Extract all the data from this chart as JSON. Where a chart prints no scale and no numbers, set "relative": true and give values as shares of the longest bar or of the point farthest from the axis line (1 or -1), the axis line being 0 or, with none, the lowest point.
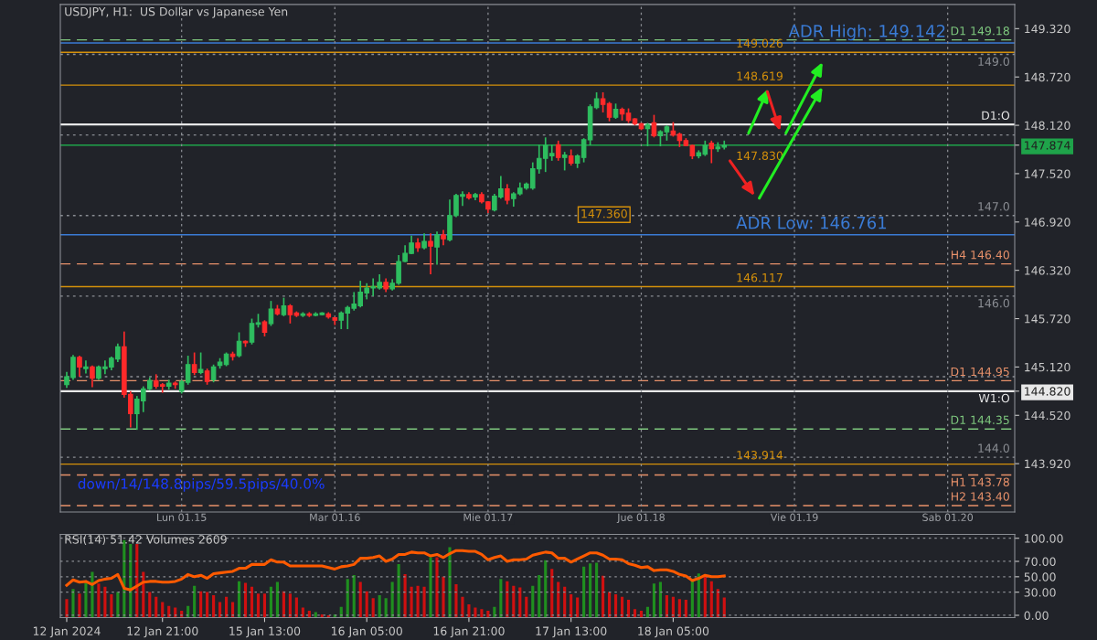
{
  "chart_data": [
    {
      "type": "candlestick",
      "title": "USDJPY, H1:  US Dollar vs Japanese Yen",
      "grid": "x",
      "categories": [
        null,
        null,
        null,
        null,
        null,
        null,
        null,
        null,
        null,
        null,
        null,
        null,
        null,
        null,
        null,
        null,
        null,
        null,
        "Lun 01.15",
        null,
        null,
        null,
        null,
        null,
        null,
        null,
        null,
        null,
        null,
        null,
        null,
        null,
        null,
        null,
        null,
        null,
        null,
        null,
        null,
        null,
        null,
        null,
        "Mar 01.16",
        null,
        null,
        null,
        null,
        null,
        null,
        null,
        null,
        null,
        null,
        null,
        null,
        null,
        null,
        null,
        null,
        null,
        null,
        null,
        null,
        null,
        null,
        null,
        "Mie 01.17",
        null,
        null,
        null,
        null,
        null,
        null,
        null,
        null,
        null,
        null,
        null,
        null,
        null,
        null,
        null,
        null,
        null,
        null,
        null,
        null,
        null,
        null,
        null,
        "Jue 01.18",
        null,
        null,
        null,
        null,
        null,
        null,
        null,
        null,
        null,
        null,
        null,
        null,
        null,
        null,
        null,
        null,
        null,
        null,
        null,
        null,
        null,
        null,
        null,
        "Vie 01.19",
        null,
        null,
        null,
        null,
        null,
        null,
        null,
        null,
        null,
        null,
        null,
        null,
        null,
        null,
        null,
        null,
        null,
        null,
        null,
        null,
        null,
        null,
        null,
        "Sab 01.20",
        null,
        null,
        null,
        null,
        null,
        null,
        null,
        null,
        null,
        null
      ],
      "ohlc": [
        [
          144.9,
          145.06,
          144.86,
          145.0
        ],
        [
          144.99,
          145.27,
          144.96,
          145.24
        ],
        [
          145.24,
          145.26,
          145.0,
          145.12
        ],
        [
          145.1,
          145.2,
          145.04,
          145.12
        ],
        [
          145.12,
          145.14,
          144.87,
          144.98
        ],
        [
          144.98,
          145.14,
          144.96,
          145.12
        ],
        [
          145.1,
          145.2,
          145.03,
          145.12
        ],
        [
          145.12,
          145.25,
          145.08,
          145.23
        ],
        [
          145.22,
          145.41,
          145.18,
          145.37
        ],
        [
          145.37,
          145.56,
          144.74,
          144.78
        ],
        [
          144.78,
          144.82,
          144.37,
          144.54
        ],
        [
          144.54,
          144.76,
          144.34,
          144.72
        ],
        [
          144.7,
          144.88,
          144.56,
          144.85
        ],
        [
          144.85,
          144.99,
          144.83,
          144.95
        ],
        [
          144.95,
          145.03,
          144.85,
          144.88
        ],
        [
          144.9,
          144.92,
          144.8,
          144.88
        ],
        [
          144.88,
          144.96,
          144.84,
          144.92
        ],
        [
          144.92,
          144.94,
          144.85,
          144.9
        ],
        [
          144.82,
          144.96,
          144.79,
          144.94
        ],
        [
          144.93,
          145.26,
          144.9,
          145.15
        ],
        [
          145.15,
          145.3,
          145.02,
          145.05
        ],
        [
          145.05,
          145.3,
          145.03,
          145.09
        ],
        [
          145.07,
          145.1,
          144.9,
          144.94
        ],
        [
          144.96,
          145.15,
          144.93,
          145.12
        ],
        [
          145.14,
          145.23,
          145.1,
          145.18
        ],
        [
          145.15,
          145.3,
          145.13,
          145.28
        ],
        [
          145.28,
          145.31,
          145.2,
          145.25
        ],
        [
          145.26,
          145.55,
          145.24,
          145.44
        ],
        [
          145.44,
          145.45,
          145.37,
          145.42
        ],
        [
          145.43,
          145.72,
          145.4,
          145.66
        ],
        [
          145.65,
          145.78,
          145.61,
          145.67
        ],
        [
          145.68,
          145.7,
          145.5,
          145.55
        ],
        [
          145.66,
          145.94,
          145.63,
          145.84
        ],
        [
          145.84,
          145.89,
          145.76,
          145.78
        ],
        [
          145.77,
          145.98,
          145.75,
          145.88
        ],
        [
          145.88,
          145.9,
          145.66,
          145.77
        ],
        [
          145.79,
          145.81,
          145.74,
          145.76
        ],
        [
          145.76,
          145.8,
          145.74,
          145.78
        ],
        [
          145.78,
          145.8,
          145.74,
          145.76
        ],
        [
          145.76,
          145.8,
          145.75,
          145.78
        ],
        [
          145.77,
          145.8,
          145.76,
          145.79
        ],
        [
          145.78,
          145.8,
          145.72,
          145.74
        ],
        [
          145.73,
          145.74,
          145.64,
          145.7
        ],
        [
          145.7,
          145.81,
          145.59,
          145.79
        ],
        [
          145.79,
          145.88,
          145.59,
          145.86
        ],
        [
          145.85,
          146.05,
          145.82,
          145.9
        ],
        [
          145.88,
          146.19,
          145.86,
          146.05
        ],
        [
          146.04,
          146.16,
          145.96,
          146.1
        ],
        [
          146.1,
          146.22,
          146.0,
          146.12
        ],
        [
          146.1,
          146.27,
          146.08,
          146.17
        ],
        [
          146.17,
          146.22,
          146.05,
          146.09
        ],
        [
          146.09,
          146.21,
          146.07,
          146.16
        ],
        [
          146.16,
          146.51,
          146.14,
          146.43
        ],
        [
          146.43,
          146.63,
          146.42,
          146.53
        ],
        [
          146.53,
          146.75,
          146.52,
          146.66
        ],
        [
          146.66,
          146.72,
          146.55,
          146.6
        ],
        [
          146.6,
          146.78,
          146.58,
          146.68
        ],
        [
          146.68,
          146.78,
          146.27,
          146.62
        ],
        [
          146.61,
          146.8,
          146.39,
          146.76
        ],
        [
          146.76,
          146.82,
          146.63,
          146.71
        ],
        [
          146.7,
          147.2,
          146.68,
          147.0
        ],
        [
          147.0,
          147.27,
          146.98,
          147.25
        ],
        [
          147.24,
          147.3,
          147.12,
          147.26
        ],
        [
          147.26,
          147.29,
          147.2,
          147.22
        ],
        [
          147.23,
          147.28,
          147.19,
          147.26
        ],
        [
          147.26,
          147.29,
          147.15,
          147.17
        ],
        [
          147.17,
          147.18,
          147.03,
          147.08
        ],
        [
          147.07,
          147.27,
          147.05,
          147.24
        ],
        [
          147.23,
          147.49,
          147.21,
          147.33
        ],
        [
          147.33,
          147.39,
          147.14,
          147.19
        ],
        [
          147.21,
          147.29,
          147.11,
          147.27
        ],
        [
          147.27,
          147.41,
          147.25,
          147.34
        ],
        [
          147.34,
          147.41,
          147.32,
          147.39
        ],
        [
          147.34,
          147.66,
          147.32,
          147.58
        ],
        [
          147.58,
          147.88,
          147.52,
          147.71
        ],
        [
          147.71,
          147.97,
          147.54,
          147.87
        ],
        [
          147.74,
          147.88,
          147.68,
          147.77
        ],
        [
          147.88,
          147.93,
          147.68,
          147.72
        ],
        [
          147.72,
          147.79,
          147.56,
          147.75
        ],
        [
          147.74,
          147.82,
          147.62,
          147.65
        ],
        [
          147.65,
          147.76,
          147.59,
          147.74
        ],
        [
          147.72,
          147.96,
          147.66,
          147.94
        ],
        [
          147.94,
          148.38,
          147.87,
          148.35
        ],
        [
          148.34,
          148.53,
          148.32,
          148.45
        ],
        [
          148.45,
          148.53,
          148.28,
          148.38
        ],
        [
          148.39,
          148.41,
          148.17,
          148.22
        ],
        [
          148.22,
          148.39,
          148.2,
          148.32
        ],
        [
          148.32,
          148.34,
          148.18,
          148.26
        ],
        [
          148.27,
          148.33,
          148.15,
          148.18
        ],
        [
          148.2,
          148.21,
          148.12,
          148.14
        ],
        [
          148.14,
          148.15,
          148.06,
          148.08
        ],
        [
          148.08,
          148.15,
          147.86,
          148.13
        ],
        [
          148.15,
          148.25,
          147.97,
          147.99
        ],
        [
          147.99,
          148.06,
          147.86,
          148.04
        ],
        [
          148.04,
          148.12,
          147.93,
          148.1
        ],
        [
          148.05,
          148.16,
          147.98,
          148.0
        ],
        [
          148.01,
          148.03,
          147.85,
          147.93
        ],
        [
          147.93,
          147.96,
          147.86,
          147.87
        ],
        [
          147.87,
          147.88,
          147.7,
          147.74
        ],
        [
          147.74,
          147.81,
          147.71,
          147.78
        ],
        [
          147.76,
          147.93,
          147.74,
          147.87
        ],
        [
          147.9,
          147.93,
          147.65,
          147.83
        ],
        [
          147.83,
          147.91,
          147.79,
          147.85
        ],
        [
          147.85,
          147.93,
          147.82,
          147.874
        ],
        null,
        null,
        null,
        null,
        null,
        null,
        null,
        null,
        null,
        null,
        null,
        null,
        null,
        null,
        null,
        null,
        null,
        null,
        null,
        null,
        null,
        null,
        null,
        null,
        null,
        null,
        null,
        null,
        null,
        null,
        null,
        null,
        null,
        null,
        null,
        null,
        null,
        null,
        null,
        null,
        null,
        null,
        null,
        null,
        null
      ],
      "ylim": [
        143.32,
        149.62
      ],
      "yticks": [
        {
          "value": 143.92,
          "label": "143.920"
        },
        {
          "value": 144.52,
          "label": "144.520"
        },
        {
          "value": 144.82,
          "label": "144.820"
        },
        {
          "value": 145.12,
          "label": "145.120"
        },
        {
          "value": 145.72,
          "label": "145.720"
        },
        {
          "value": 146.32,
          "label": "146.320"
        },
        {
          "value": 146.92,
          "label": "146.920"
        },
        {
          "value": 147.52,
          "label": "147.520"
        },
        {
          "value": 147.874,
          "label": "147.874"
        },
        {
          "value": 148.12,
          "label": "148.120"
        },
        {
          "value": 148.72,
          "label": "148.720"
        },
        {
          "value": 149.32,
          "label": "149.320"
        }
      ],
      "ref_lines": [
        {
          "axis": "y",
          "value": 149.18,
          "label": "D1 149.18",
          "color": "#7ec87e",
          "line_style": "dashed"
        },
        {
          "axis": "y",
          "value": 144.35,
          "label": "D1 144.35",
          "color": "#7ec87e",
          "line_style": "dashed"
        },
        {
          "axis": "y",
          "value": 146.4,
          "label": "H4 146.40",
          "color": "#e8916a",
          "line_style": "dashed"
        },
        {
          "axis": "y",
          "value": 144.95,
          "label": "D1 144.95",
          "color": "#e8916a",
          "line_style": "dashed"
        },
        {
          "axis": "y",
          "value": 143.78,
          "label": "H1 143.78",
          "color": "#e8916a",
          "line_style": "dashed"
        },
        {
          "axis": "y",
          "value": 143.4,
          "label": "H2 143.40",
          "color": "#e8916a",
          "line_style": "dashed"
        },
        {
          "axis": "y",
          "value": 149.0,
          "label": "149.0",
          "color": "#8a8d93",
          "line_style": "dotted"
        },
        {
          "axis": "y",
          "value": 148.0,
          "label": null,
          "color": "#8a8d93",
          "line_style": "dotted"
        },
        {
          "axis": "y",
          "value": 147.0,
          "label": "147.0",
          "color": "#8a8d93",
          "line_style": "dotted"
        },
        {
          "axis": "y",
          "value": 146.0,
          "label": "146.0",
          "color": "#8a8d93",
          "line_style": "dotted"
        },
        {
          "axis": "y",
          "value": 145.0,
          "label": null,
          "color": "#8a8d93",
          "line_style": "dotted"
        },
        {
          "axis": "y",
          "value": 144.0,
          "label": "144.0",
          "color": "#8a8d93",
          "line_style": "dotted"
        },
        {
          "axis": "y",
          "value": 148.13,
          "label": "D1:O",
          "color": "#e8e8e8",
          "line_style": "solid"
        },
        {
          "axis": "y",
          "value": 144.82,
          "label": "W1:O",
          "color": "#e8e8e8",
          "line_style": "solid"
        },
        {
          "axis": "y",
          "value": 147.874,
          "label": null,
          "color": "#1fa34a",
          "line_style": "solid"
        },
        {
          "axis": "y",
          "value": 149.026,
          "label": null,
          "color": "#d4900a",
          "line_style": "solid"
        },
        {
          "axis": "y",
          "value": 148.619,
          "label": null,
          "color": "#d4900a",
          "line_style": "solid"
        },
        {
          "axis": "y",
          "value": 146.117,
          "label": null,
          "color": "#d4900a",
          "line_style": "solid"
        },
        {
          "axis": "y",
          "value": 143.914,
          "label": null,
          "color": "#d4900a",
          "line_style": "solid"
        },
        {
          "axis": "y",
          "value": 149.142,
          "label": null,
          "color": "#3a7bd5",
          "line_style": "solid"
        },
        {
          "axis": "y",
          "value": 146.761,
          "label": null,
          "color": "#3a7bd5",
          "line_style": "solid"
        }
      ],
      "annotations": [
        {
          "text": "149.026",
          "y": 149.026
        },
        {
          "text": "148.619",
          "y": 148.619
        },
        {
          "text": "147.830",
          "y": 147.83
        },
        {
          "text": "146.117",
          "y": 146.117
        },
        {
          "text": "143.914",
          "y": 143.914
        },
        {
          "text": "ADR High: 149.142",
          "y": 149.142
        },
        {
          "text": "ADR Low: 146.761",
          "y": 146.761
        },
        "147.360",
        "down/14/148.8pips/59.5pips/40.0%"
      ]
    },
    {
      "type": "line",
      "title": "RSI(14) 51.42 Volumes 2609",
      "grid": "y",
      "ylim": [
        -3,
        105
      ],
      "categories": [
        "12 Jan 2024",
        null,
        null,
        null,
        null,
        null,
        null,
        null,
        null,
        null,
        null,
        null,
        null,
        null,
        null,
        "12 Jan 21:00",
        null,
        null,
        null,
        null,
        null,
        null,
        null,
        null,
        null,
        null,
        null,
        null,
        null,
        null,
        null,
        "15 Jan 13:00",
        null,
        null,
        null,
        null,
        null,
        null,
        null,
        null,
        null,
        null,
        null,
        null,
        null,
        null,
        null,
        "16 Jan 05:00",
        null,
        null,
        null,
        null,
        null,
        null,
        null,
        null,
        null,
        null,
        null,
        null,
        null,
        null,
        null,
        "16 Jan 21:00",
        null,
        null,
        null,
        null,
        null,
        null,
        null,
        null,
        null,
        null,
        null,
        null,
        null,
        null,
        null,
        "17 Jan 13:00",
        null,
        null,
        null,
        null,
        null,
        null,
        null,
        null,
        null,
        null,
        null,
        null,
        null,
        null,
        null,
        "18 Jan 05:00",
        null,
        null,
        null,
        null,
        null,
        null,
        null,
        null,
        null,
        null,
        null,
        null,
        null,
        null,
        null,
        null,
        null,
        null,
        null,
        null,
        null,
        null,
        null,
        null,
        null,
        null,
        null,
        null,
        null,
        null,
        null,
        null,
        null,
        null,
        null,
        null,
        null,
        null,
        null,
        null,
        null,
        null,
        null,
        null,
        null,
        null,
        null,
        null,
        null,
        null,
        null,
        null,
        null
      ],
      "yticks": [
        {
          "value": 0,
          "label": "0.00"
        },
        {
          "value": 30,
          "label": "30.00"
        },
        {
          "value": 50,
          "label": "50.00"
        },
        {
          "value": 70,
          "label": "70.00"
        },
        {
          "value": 100,
          "label": "100.00"
        }
      ],
      "series": [
        {
          "color": "#ff5a00",
          "values": [
            39,
            46,
            43,
            44,
            40,
            45,
            47,
            48,
            53,
            35,
            33,
            38,
            43,
            44,
            44,
            43,
            43,
            44,
            47,
            53,
            50,
            52,
            48,
            54,
            55,
            56,
            57,
            61,
            61,
            66,
            66,
            66,
            72,
            69,
            69,
            64,
            64,
            64,
            64,
            64,
            64,
            62,
            60,
            63,
            64,
            66,
            74,
            74,
            75,
            77,
            70,
            73,
            79,
            79,
            82,
            81,
            81,
            77,
            79,
            75,
            80,
            84,
            84,
            83,
            83,
            79,
            72,
            75,
            77,
            70,
            72,
            72,
            73,
            78,
            80,
            82,
            81,
            74,
            74,
            69,
            73,
            77,
            81,
            81,
            78,
            73,
            73,
            72,
            67,
            65,
            62,
            63,
            58,
            59,
            59,
            57,
            53,
            51,
            45,
            48,
            52,
            50,
            50,
            51,
            null,
            null,
            null,
            null,
            null,
            null,
            null,
            null,
            null,
            null,
            null,
            null,
            null,
            null,
            null,
            null,
            null,
            null,
            null,
            null,
            null,
            null,
            null,
            null,
            null,
            null,
            null,
            null,
            null,
            null,
            null,
            null,
            null,
            null,
            null,
            null,
            null,
            null,
            null,
            null,
            null,
            null,
            null,
            null,
            null
          ]
        }
      ]
    },
    {
      "type": "bar",
      "relative": true,
      "categories": [
        null,
        null,
        null,
        null,
        null,
        null,
        null,
        null,
        null,
        null,
        null,
        null,
        null,
        null,
        null,
        null,
        null,
        null,
        null,
        null,
        null,
        null,
        null,
        null,
        null,
        null,
        null,
        null,
        null,
        null,
        null,
        null,
        null,
        null,
        null,
        null,
        null,
        null,
        null,
        null,
        null,
        null,
        null,
        null,
        null,
        null,
        null,
        null,
        null,
        null,
        null,
        null,
        null,
        null,
        null,
        null,
        null,
        null,
        null,
        null,
        null,
        null,
        null,
        null,
        null,
        null,
        null,
        null,
        null,
        null,
        null,
        null,
        null,
        null,
        null,
        null,
        null,
        null,
        null,
        null,
        null,
        null,
        null,
        null,
        null,
        null,
        null,
        null,
        null,
        null,
        null,
        null,
        null,
        null,
        null,
        null,
        null,
        null,
        null,
        null,
        null,
        null,
        null,
        null,
        null,
        null,
        null,
        null,
        null,
        null,
        null,
        null,
        null,
        null,
        null,
        null,
        null,
        null,
        null,
        null,
        null,
        null,
        null,
        null,
        null,
        null,
        null,
        null,
        null,
        null,
        null,
        null,
        null,
        null,
        null,
        null,
        null,
        null,
        null,
        null,
        null,
        null,
        null,
        null,
        null,
        null,
        null,
        null,
        null
      ],
      "values": [
        0.24,
        0.37,
        0.31,
        0.45,
        0.59,
        0.44,
        0.4,
        0.3,
        0.33,
        1,
        0.95,
        0.95,
        0.59,
        0.33,
        0.27,
        0.2,
        0.15,
        0.13,
        0.09,
        0.15,
        0.41,
        0.34,
        0.33,
        0.29,
        0.2,
        0.27,
        0.2,
        0.47,
        0.45,
        0.4,
        0.31,
        0.31,
        0.4,
        0.46,
        0.34,
        0.31,
        0.26,
        0.13,
        0.09,
        0.07,
        0.04,
        0.03,
        0.04,
        0.14,
        0.5,
        0.55,
        0.46,
        0.34,
        0.25,
        0.29,
        0.25,
        0.46,
        0.69,
        0.56,
        0.4,
        0.41,
        0.4,
        0.78,
        0.78,
        0.53,
        0.91,
        0.43,
        0.27,
        0.17,
        0.13,
        0.11,
        0.09,
        0.14,
        0.5,
        0.47,
        0.41,
        0.39,
        0.27,
        0.41,
        0.55,
        0.74,
        0.63,
        0.46,
        0.4,
        0.3,
        0.26,
        0.66,
        0.7,
        0.71,
        0.54,
        0.33,
        0.3,
        0.27,
        0.23,
        0.11,
        0.09,
        0.14,
        0.44,
        0.46,
        0.29,
        0.27,
        0.24,
        0.23,
        0.49,
        0.57,
        0.53,
        0.47,
        0.37,
        0.26,
        null,
        null,
        null,
        null,
        null,
        null,
        null,
        null,
        null,
        null,
        null,
        null,
        null,
        null,
        null,
        null,
        null,
        null,
        null,
        null,
        null,
        null,
        null,
        null,
        null,
        null,
        null,
        null,
        null,
        null,
        null,
        null,
        null,
        null,
        null,
        null,
        null,
        null,
        null,
        null,
        null,
        null,
        null,
        null,
        null
      ],
      "colors": [
        "#d01010",
        "#1f8f1f",
        "#d01010",
        "#1f8f1f",
        "#1f8f1f",
        "#d01010",
        "#d01010",
        "#d01010",
        "#1f8f1f",
        "#1f8f1f",
        "#1f8f1f",
        "#d01010",
        "#d01010",
        "#d01010",
        "#d01010",
        "#d01010",
        "#d01010",
        "#d01010",
        "#d01010",
        "#1f8f1f",
        "#1f8f1f",
        "#d01010",
        "#d01010",
        "#d01010",
        "#d01010",
        "#d01010",
        "#d01010",
        "#1f8f1f",
        "#d01010",
        "#d01010",
        "#d01010",
        "#d01010",
        "#1f8f1f",
        "#1f8f1f",
        "#d01010",
        "#d01010",
        "#d01010",
        "#d01010",
        "#d01010",
        "#1f8f1f",
        "#d01010",
        "#d01010",
        "#1f8f1f",
        "#1f8f1f",
        "#1f8f1f",
        "#1f8f1f",
        "#d01010",
        "#d01010",
        "#d01010",
        "#1f8f1f",
        "#1f8f1f",
        "#1f8f1f",
        "#1f8f1f",
        "#d01010",
        "#d01010",
        "#d01010",
        "#d01010",
        "#1f8f1f",
        "#d01010",
        "#d01010",
        "#1f8f1f",
        "#d01010",
        "#d01010",
        "#d01010",
        "#d01010",
        "#d01010",
        "#d01010",
        "#1f8f1f",
        "#1f8f1f",
        "#d01010",
        "#d01010",
        "#d01010",
        "#d01010",
        "#1f8f1f",
        "#1f8f1f",
        "#1f8f1f",
        "#d01010",
        "#d01010",
        "#d01010",
        "#d01010",
        "#d01010",
        "#1f8f1f",
        "#1f8f1f",
        "#1f8f1f",
        "#d01010",
        "#d01010",
        "#d01010",
        "#d01010",
        "#d01010",
        "#d01010",
        "#d01010",
        "#1f8f1f",
        "#1f8f1f",
        "#1f8f1f",
        "#d01010",
        "#d01010",
        "#d01010",
        "#d01010",
        "#1f8f1f",
        "#1f8f1f",
        "#d01010",
        "#d01010",
        "#d01010",
        "#d01010",
        null,
        null,
        null,
        null,
        null,
        null,
        null,
        null,
        null,
        null,
        null,
        null,
        null,
        null,
        null,
        null,
        null,
        null,
        null,
        null,
        null,
        null,
        null,
        null,
        null,
        null,
        null,
        null,
        null,
        null,
        null,
        null,
        null,
        null,
        null,
        null,
        null,
        null,
        null,
        null,
        null,
        null,
        null,
        null,
        null
      ]
    }
  ]
}
